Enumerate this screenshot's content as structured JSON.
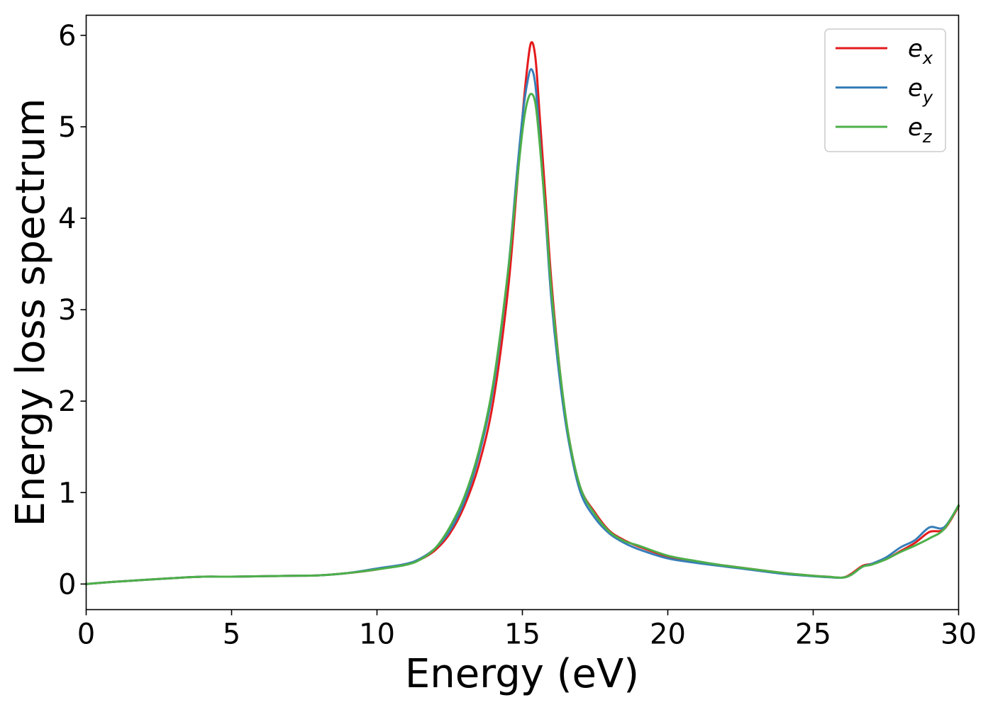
{
  "chart_data": {
    "type": "line",
    "title": "",
    "xlabel": "Energy (eV)",
    "ylabel": "Energy loss spectrum",
    "xlim": [
      0,
      30
    ],
    "ylim": [
      -0.28,
      6.22
    ],
    "xticks": [
      0,
      5,
      10,
      15,
      20,
      25,
      30
    ],
    "yticks": [
      0,
      1,
      2,
      3,
      4,
      5,
      6
    ],
    "grid": false,
    "legend_position": "top-right",
    "series": [
      {
        "name": "e",
        "subscript": "x",
        "color": "#e41a1c",
        "x": [
          0,
          1,
          2,
          3,
          4,
          5,
          6,
          7,
          8,
          9,
          10,
          11,
          11.5,
          12,
          12.5,
          13,
          13.5,
          14,
          14.5,
          14.8,
          15.0,
          15.15,
          15.3,
          15.45,
          15.6,
          15.8,
          16.0,
          16.3,
          16.6,
          17.0,
          17.5,
          18.0,
          18.5,
          19.0,
          20,
          21,
          22,
          23,
          24,
          25,
          25.5,
          26.0,
          26.3,
          26.7,
          27.0,
          27.5,
          28.0,
          28.5,
          29.0,
          29.5,
          30.0
        ],
        "y": [
          0.0,
          0.025,
          0.045,
          0.065,
          0.08,
          0.08,
          0.085,
          0.09,
          0.095,
          0.12,
          0.16,
          0.22,
          0.27,
          0.37,
          0.55,
          0.85,
          1.3,
          2.0,
          3.2,
          4.3,
          5.1,
          5.6,
          5.92,
          5.75,
          5.1,
          4.2,
          3.3,
          2.3,
          1.6,
          1.05,
          0.78,
          0.58,
          0.48,
          0.41,
          0.3,
          0.24,
          0.2,
          0.16,
          0.12,
          0.09,
          0.08,
          0.07,
          0.11,
          0.2,
          0.22,
          0.27,
          0.36,
          0.45,
          0.57,
          0.6,
          0.85
        ]
      },
      {
        "name": "e",
        "subscript": "y",
        "color": "#377eb8",
        "x": [
          0,
          1,
          2,
          3,
          4,
          5,
          6,
          7,
          8,
          9,
          10,
          11,
          11.5,
          12,
          12.5,
          13,
          13.5,
          14,
          14.5,
          14.8,
          15.0,
          15.15,
          15.3,
          15.45,
          15.6,
          15.8,
          16.0,
          16.3,
          16.6,
          17.0,
          17.5,
          18.0,
          18.5,
          19.0,
          20,
          21,
          22,
          23,
          24,
          25,
          25.5,
          26.0,
          26.3,
          26.7,
          27.0,
          27.5,
          28.0,
          28.5,
          29.0,
          29.5,
          30.0
        ],
        "y": [
          0.0,
          0.025,
          0.045,
          0.065,
          0.08,
          0.08,
          0.085,
          0.09,
          0.095,
          0.12,
          0.17,
          0.22,
          0.28,
          0.39,
          0.58,
          0.9,
          1.4,
          2.15,
          3.4,
          4.45,
          5.1,
          5.45,
          5.63,
          5.45,
          4.85,
          4.0,
          3.1,
          2.2,
          1.55,
          1.0,
          0.72,
          0.55,
          0.45,
          0.38,
          0.28,
          0.23,
          0.19,
          0.15,
          0.11,
          0.085,
          0.075,
          0.07,
          0.1,
          0.19,
          0.22,
          0.29,
          0.4,
          0.48,
          0.62,
          0.62,
          0.86
        ]
      },
      {
        "name": "e",
        "subscript": "z",
        "color": "#4daf4a",
        "x": [
          0,
          1,
          2,
          3,
          4,
          5,
          6,
          7,
          8,
          9,
          10,
          11,
          11.5,
          12,
          12.5,
          13,
          13.5,
          14,
          14.5,
          14.8,
          15.0,
          15.15,
          15.3,
          15.45,
          15.6,
          15.8,
          16.0,
          16.3,
          16.6,
          17.0,
          17.5,
          18.0,
          18.5,
          19.0,
          20,
          21,
          22,
          23,
          24,
          25,
          25.5,
          26.0,
          26.3,
          26.7,
          27.0,
          27.5,
          28.0,
          28.5,
          29.0,
          29.5,
          30.0
        ],
        "y": [
          0.0,
          0.025,
          0.045,
          0.065,
          0.08,
          0.08,
          0.085,
          0.09,
          0.095,
          0.12,
          0.16,
          0.21,
          0.27,
          0.39,
          0.62,
          0.95,
          1.45,
          2.2,
          3.4,
          4.35,
          4.95,
          5.25,
          5.36,
          5.25,
          4.8,
          4.05,
          3.2,
          2.3,
          1.6,
          1.05,
          0.76,
          0.57,
          0.47,
          0.42,
          0.31,
          0.25,
          0.2,
          0.16,
          0.12,
          0.09,
          0.08,
          0.07,
          0.1,
          0.19,
          0.21,
          0.27,
          0.35,
          0.42,
          0.5,
          0.6,
          0.86
        ]
      }
    ]
  }
}
